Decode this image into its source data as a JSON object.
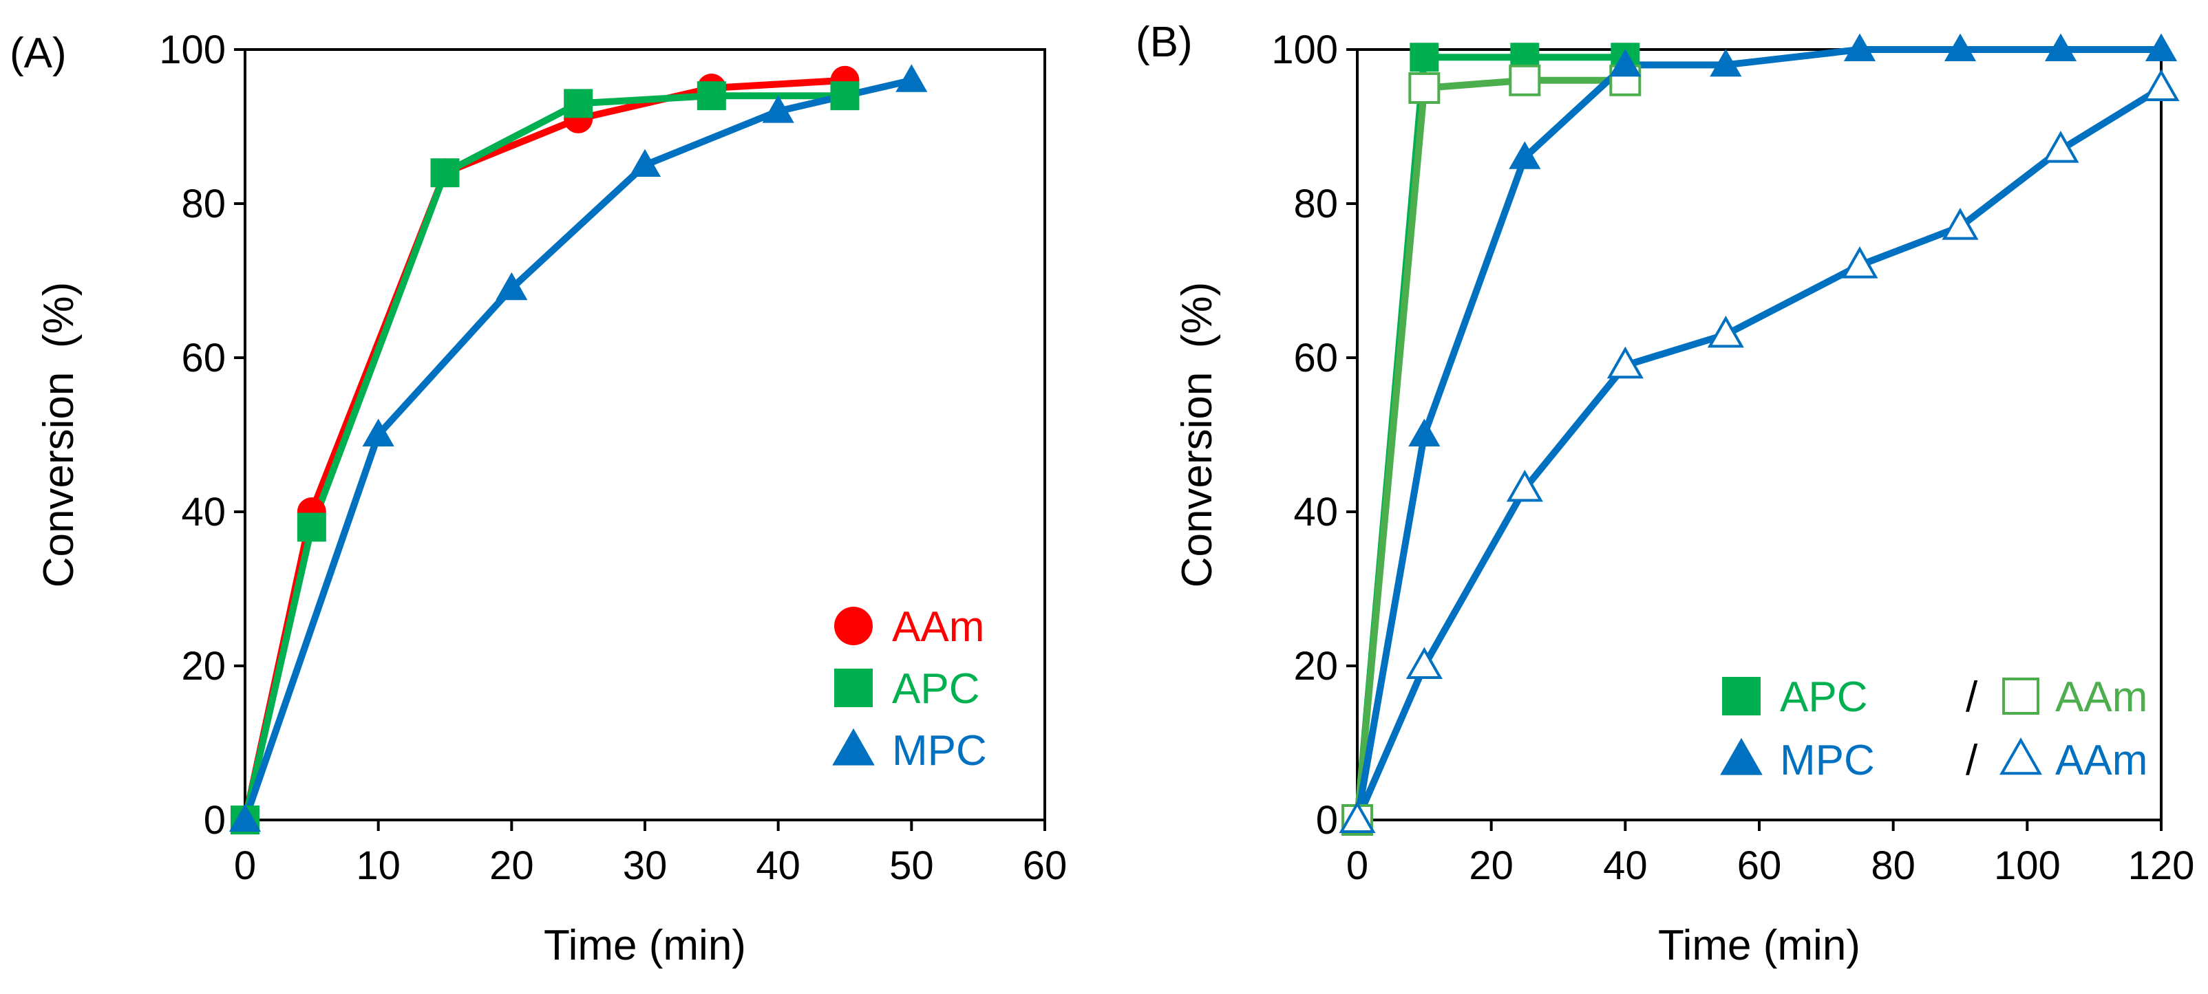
{
  "chart_data": [
    {
      "type": "line",
      "panel_label": "(A)",
      "xlabel": "Time (min)",
      "ylabel": "Conversion  (%)",
      "xlim": [
        0,
        60
      ],
      "ylim": [
        0,
        100
      ],
      "xticks": [
        "0",
        "10",
        "20",
        "30",
        "40",
        "50",
        "60"
      ],
      "yticks": [
        "0",
        "20",
        "40",
        "60",
        "80",
        "100"
      ],
      "grid": false,
      "legend_position": "bottom-right",
      "series": [
        {
          "name": "AAm",
          "color": "#ff0000",
          "marker": "circle",
          "filled": true,
          "x": [
            0,
            5,
            15,
            25,
            35,
            45
          ],
          "y": [
            0,
            40,
            84,
            91,
            95,
            96
          ]
        },
        {
          "name": "APC",
          "color": "#00b050",
          "marker": "square",
          "filled": true,
          "x": [
            0,
            5,
            15,
            25,
            35,
            45
          ],
          "y": [
            0,
            38,
            84,
            93,
            94,
            94
          ]
        },
        {
          "name": "MPC",
          "color": "#0070c0",
          "marker": "triangle",
          "filled": true,
          "x": [
            0,
            10,
            20,
            30,
            40,
            50
          ],
          "y": [
            0,
            50,
            69,
            85,
            92,
            96
          ]
        }
      ],
      "legend": [
        {
          "label": "AAm",
          "color": "#ff0000",
          "marker": "circle",
          "filled": true
        },
        {
          "label": "APC",
          "color": "#00b050",
          "marker": "square",
          "filled": true
        },
        {
          "label": "MPC",
          "color": "#0070c0",
          "marker": "triangle",
          "filled": true
        }
      ]
    },
    {
      "type": "line",
      "panel_label": "(B)",
      "xlabel": "Time (min)",
      "ylabel": "Conversion  (%)",
      "xlim": [
        0,
        120
      ],
      "ylim": [
        0,
        100
      ],
      "xticks": [
        "0",
        "20",
        "40",
        "60",
        "80",
        "100",
        "120"
      ],
      "yticks": [
        "0",
        "20",
        "40",
        "60",
        "80",
        "100"
      ],
      "grid": false,
      "legend_position": "bottom-right",
      "series": [
        {
          "name": "APC",
          "color": "#00b050",
          "marker": "square",
          "filled": true,
          "x": [
            0,
            10,
            25,
            40
          ],
          "y": [
            0,
            99,
            99,
            99
          ]
        },
        {
          "name": "AAm (with APC)",
          "color": "#4cae4c",
          "marker": "square",
          "filled": false,
          "x": [
            0,
            10,
            25,
            40
          ],
          "y": [
            0,
            95,
            96,
            96
          ]
        },
        {
          "name": "MPC",
          "color": "#0070c0",
          "marker": "triangle",
          "filled": true,
          "x": [
            0,
            10,
            25,
            40,
            55,
            75,
            90,
            105,
            120
          ],
          "y": [
            0,
            50,
            86,
            98,
            98,
            100,
            100,
            100,
            100
          ]
        },
        {
          "name": "AAm (with MPC)",
          "color": "#0070c0",
          "marker": "triangle",
          "filled": false,
          "x": [
            0,
            10,
            25,
            40,
            55,
            75,
            90,
            105,
            120
          ],
          "y": [
            0,
            20,
            43,
            59,
            63,
            72,
            77,
            87,
            95
          ]
        }
      ],
      "legend": [
        {
          "label": "APC",
          "color": "#00b050",
          "marker": "square",
          "filled": true,
          "separator": "/",
          "label2": "AAm",
          "color2": "#4cae4c",
          "marker2": "square"
        },
        {
          "label": "MPC",
          "color": "#0070c0",
          "marker": "triangle",
          "filled": true,
          "separator": "/",
          "label2": "AAm",
          "color2": "#0070c0",
          "marker2": "triangle"
        }
      ]
    }
  ]
}
